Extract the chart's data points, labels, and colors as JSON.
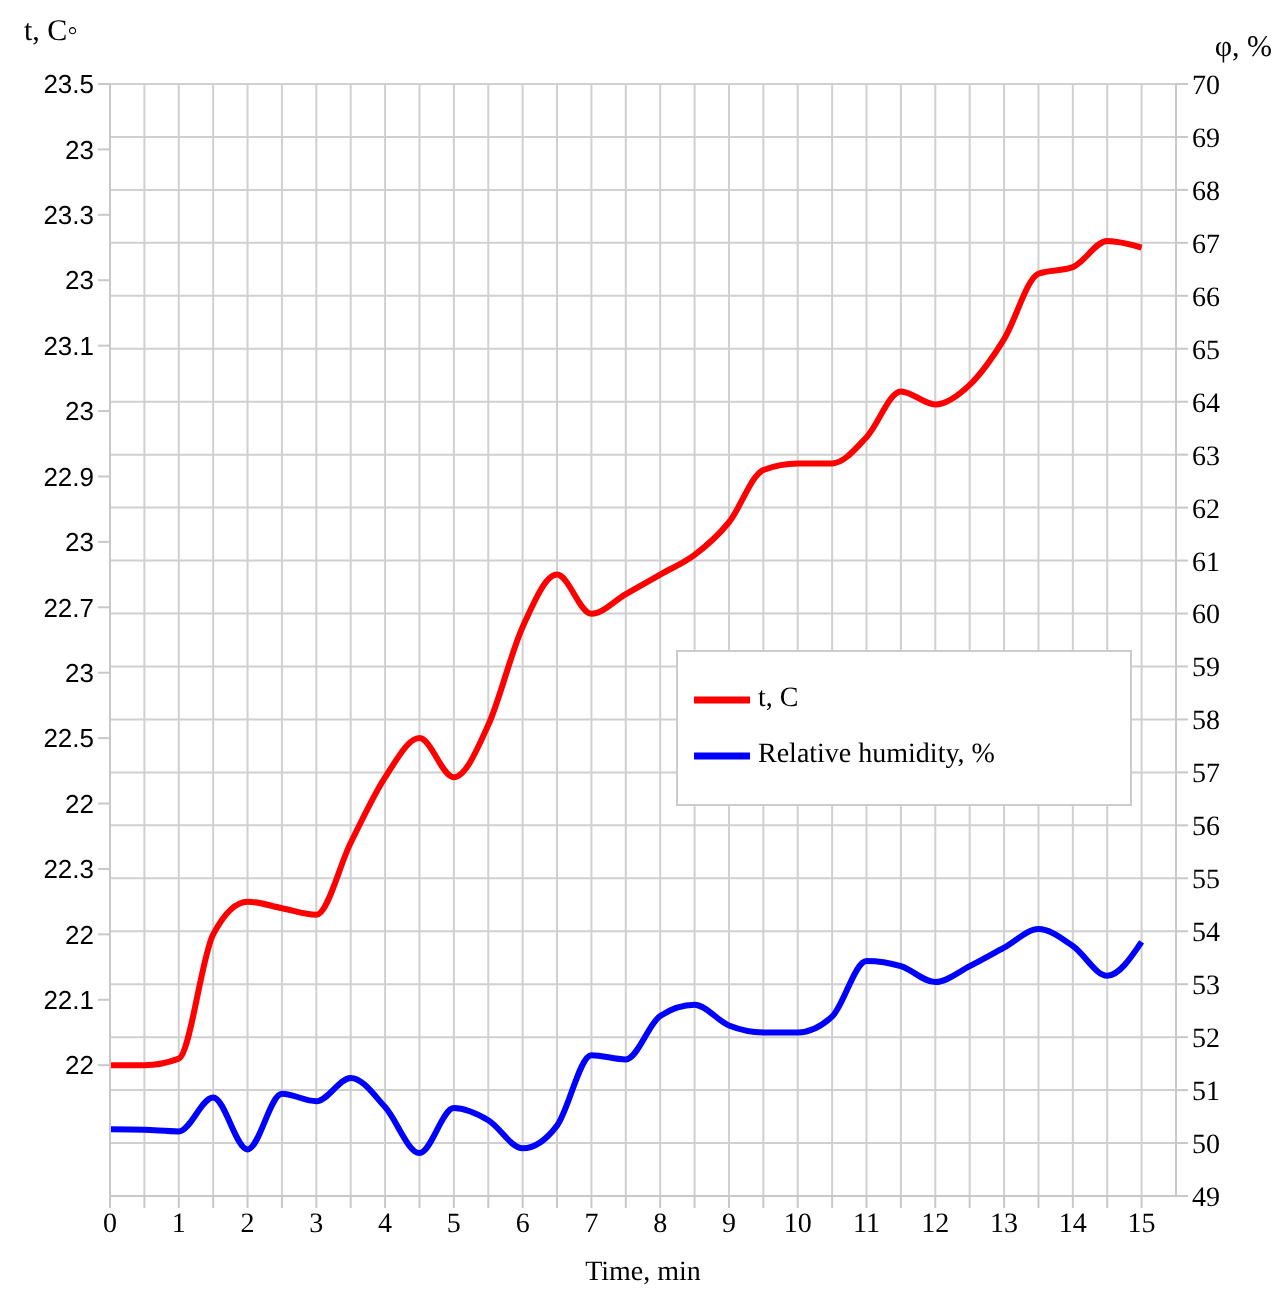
{
  "chart_data": {
    "type": "line",
    "xlabel": "Time, min",
    "ylabel": "t, C◦",
    "y2label": "φ, %",
    "x": [
      0,
      0.5,
      1,
      1.5,
      2,
      2.5,
      3,
      3.5,
      4,
      4.5,
      5,
      5.5,
      6,
      6.5,
      7,
      7.5,
      8,
      8.5,
      9,
      9.5,
      10,
      10.5,
      11,
      11.5,
      12,
      12.5,
      13,
      13.5,
      14,
      14.5,
      15
    ],
    "series": [
      {
        "name": "t, C",
        "color": "#ff0000",
        "values": [
          22.0,
          22.0,
          22.01,
          22.2,
          22.25,
          22.24,
          22.23,
          22.34,
          22.44,
          22.5,
          22.44,
          22.52,
          22.67,
          22.75,
          22.69,
          22.72,
          22.75,
          22.78,
          22.83,
          22.91,
          22.92,
          22.92,
          22.96,
          23.03,
          23.01,
          23.04,
          23.11,
          23.21,
          23.22,
          23.26,
          23.25
        ]
      },
      {
        "name": "Relative humidity, %",
        "color": "#0000ff",
        "axis": "y2",
        "values": [
          50.26,
          50.25,
          50.22,
          50.86,
          49.88,
          50.93,
          50.79,
          51.23,
          50.68,
          49.81,
          50.66,
          50.43,
          49.9,
          50.33,
          51.66,
          51.58,
          52.4,
          52.61,
          52.22,
          52.09,
          52.09,
          52.39,
          53.44,
          53.34,
          53.04,
          53.34,
          53.69,
          54.04,
          53.72,
          53.16,
          53.8
        ]
      }
    ],
    "xlim": [
      0,
      15.5
    ],
    "xticks": [
      0,
      {
        "value": 0.5,
        "label": null
      },
      1,
      {
        "value": 1.5,
        "label": null
      },
      2,
      {
        "value": 2.5,
        "label": null
      },
      3,
      {
        "value": 3.5,
        "label": null
      },
      4,
      {
        "value": 4.5,
        "label": null
      },
      5,
      {
        "value": 5.5,
        "label": null
      },
      6,
      {
        "value": 6.5,
        "label": null
      },
      7,
      {
        "value": 7.5,
        "label": null
      },
      8,
      {
        "value": 8.5,
        "label": null
      },
      9,
      {
        "value": 9.5,
        "label": null
      },
      10,
      {
        "value": 10.5,
        "label": null
      },
      11,
      {
        "value": 11.5,
        "label": null
      },
      12,
      {
        "value": 12.5,
        "label": null
      },
      13,
      {
        "value": 13.5,
        "label": null
      },
      14,
      {
        "value": 14.5,
        "label": null
      },
      15
    ],
    "ylim": [
      21.8,
      23.5
    ],
    "yticks": [
      23.5,
      {
        "value": 23.4,
        "label": "23"
      },
      23.3,
      {
        "value": 23.2,
        "label": "23"
      },
      23.1,
      {
        "value": 23.0,
        "label": "23"
      },
      22.9,
      {
        "value": 22.8,
        "label": "23"
      },
      22.7,
      {
        "value": 22.6,
        "label": "23"
      },
      22.5,
      {
        "value": 22.4,
        "label": "22"
      },
      22.3,
      {
        "value": 22.2,
        "label": "22"
      },
      22.1,
      {
        "value": 22.0,
        "label": "22"
      }
    ],
    "y2lim": [
      49,
      70
    ],
    "y2ticks": [
      49,
      50,
      51,
      52,
      53,
      54,
      55,
      56,
      57,
      58,
      59,
      60,
      61,
      62,
      63,
      64,
      65,
      66,
      67,
      68,
      69,
      70
    ],
    "grid": true,
    "legend": "right",
    "marker": "none",
    "line_style": "solid"
  }
}
